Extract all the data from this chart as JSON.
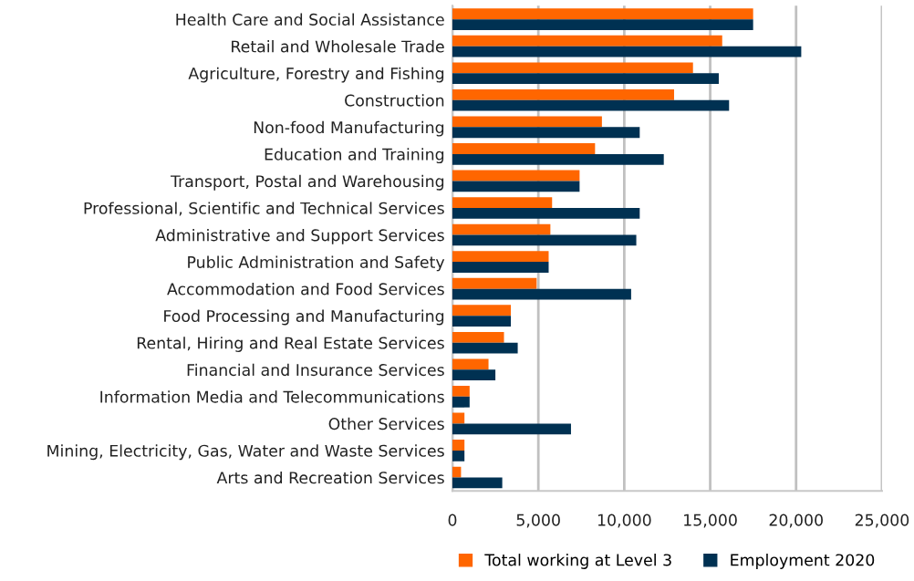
{
  "chart_data": {
    "type": "bar",
    "orientation": "horizontal",
    "categories": [
      "Health Care and Social Assistance",
      "Retail and Wholesale Trade",
      "Agriculture, Forestry and Fishing",
      "Construction",
      "Non-food Manufacturing",
      "Education and Training",
      "Transport, Postal and Warehousing",
      "Professional, Scientific and Technical Services",
      "Administrative and Support Services",
      "Public Administration and Safety",
      "Accommodation and Food Services",
      "Food Processing and Manufacturing",
      "Rental, Hiring and Real Estate Services",
      "Financial and Insurance Services",
      "Information Media and Telecommunications",
      "Other Services",
      "Mining, Electricity, Gas, Water and Waste Services",
      "Arts and Recreation Services"
    ],
    "series": [
      {
        "name": "Total working at Level 3",
        "color": "#ff6600",
        "values": [
          17500,
          15700,
          14000,
          12900,
          8700,
          8300,
          7400,
          5800,
          5700,
          5600,
          4900,
          3400,
          3000,
          2100,
          1000,
          700,
          700,
          500
        ]
      },
      {
        "name": "Employment 2020",
        "color": "#003152",
        "values": [
          17500,
          20300,
          15500,
          16100,
          10900,
          12300,
          7400,
          10900,
          10700,
          5600,
          10400,
          3400,
          3800,
          2500,
          1000,
          6900,
          700,
          2900
        ]
      }
    ],
    "xlim": [
      0,
      25000
    ],
    "xticks": [
      {
        "value": 0,
        "label": "0"
      },
      {
        "value": 5000,
        "label": "5,000"
      },
      {
        "value": 10000,
        "label": "10,000"
      },
      {
        "value": 15000,
        "label": "15,000"
      },
      {
        "value": 20000,
        "label": "20,000"
      },
      {
        "value": 25000,
        "label": "25,000"
      }
    ],
    "grid": "x",
    "legend": "bottom"
  }
}
